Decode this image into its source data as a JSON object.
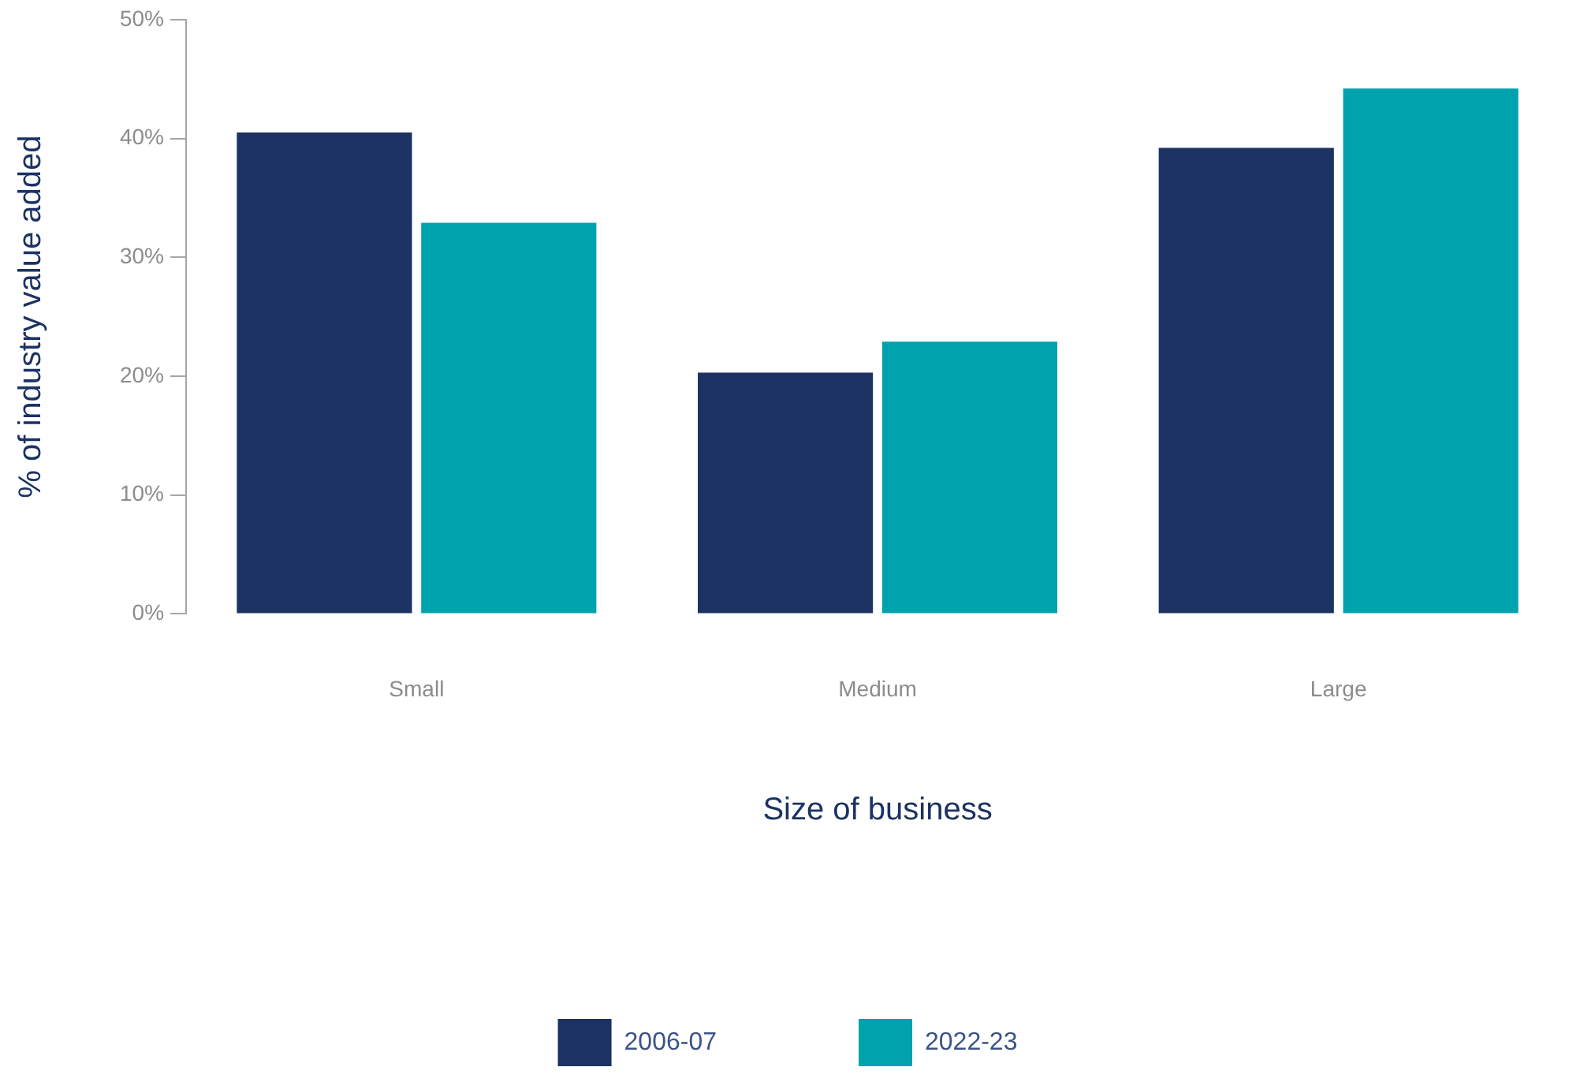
{
  "chart_data": {
    "type": "bar",
    "xlabel": "Size of business",
    "ylabel": "% of industry value added",
    "categories": [
      "Small",
      "Medium",
      "Large"
    ],
    "series": [
      {
        "name": "2006-07",
        "color": "#1b3263",
        "values": [
          40.5,
          20.3,
          39.2
        ]
      },
      {
        "name": "2022-23",
        "color": "#00a2ae",
        "values": [
          32.9,
          22.9,
          44.2
        ]
      }
    ],
    "ylim": [
      0,
      50
    ],
    "yticks": [
      {
        "value": 0,
        "label": "0%"
      },
      {
        "value": 10,
        "label": "10%"
      },
      {
        "value": 20,
        "label": "20%"
      },
      {
        "value": 30,
        "label": "30%"
      },
      {
        "value": 40,
        "label": "40%"
      },
      {
        "value": 50,
        "label": "50%"
      }
    ],
    "grid": false,
    "legend": "bottom"
  }
}
